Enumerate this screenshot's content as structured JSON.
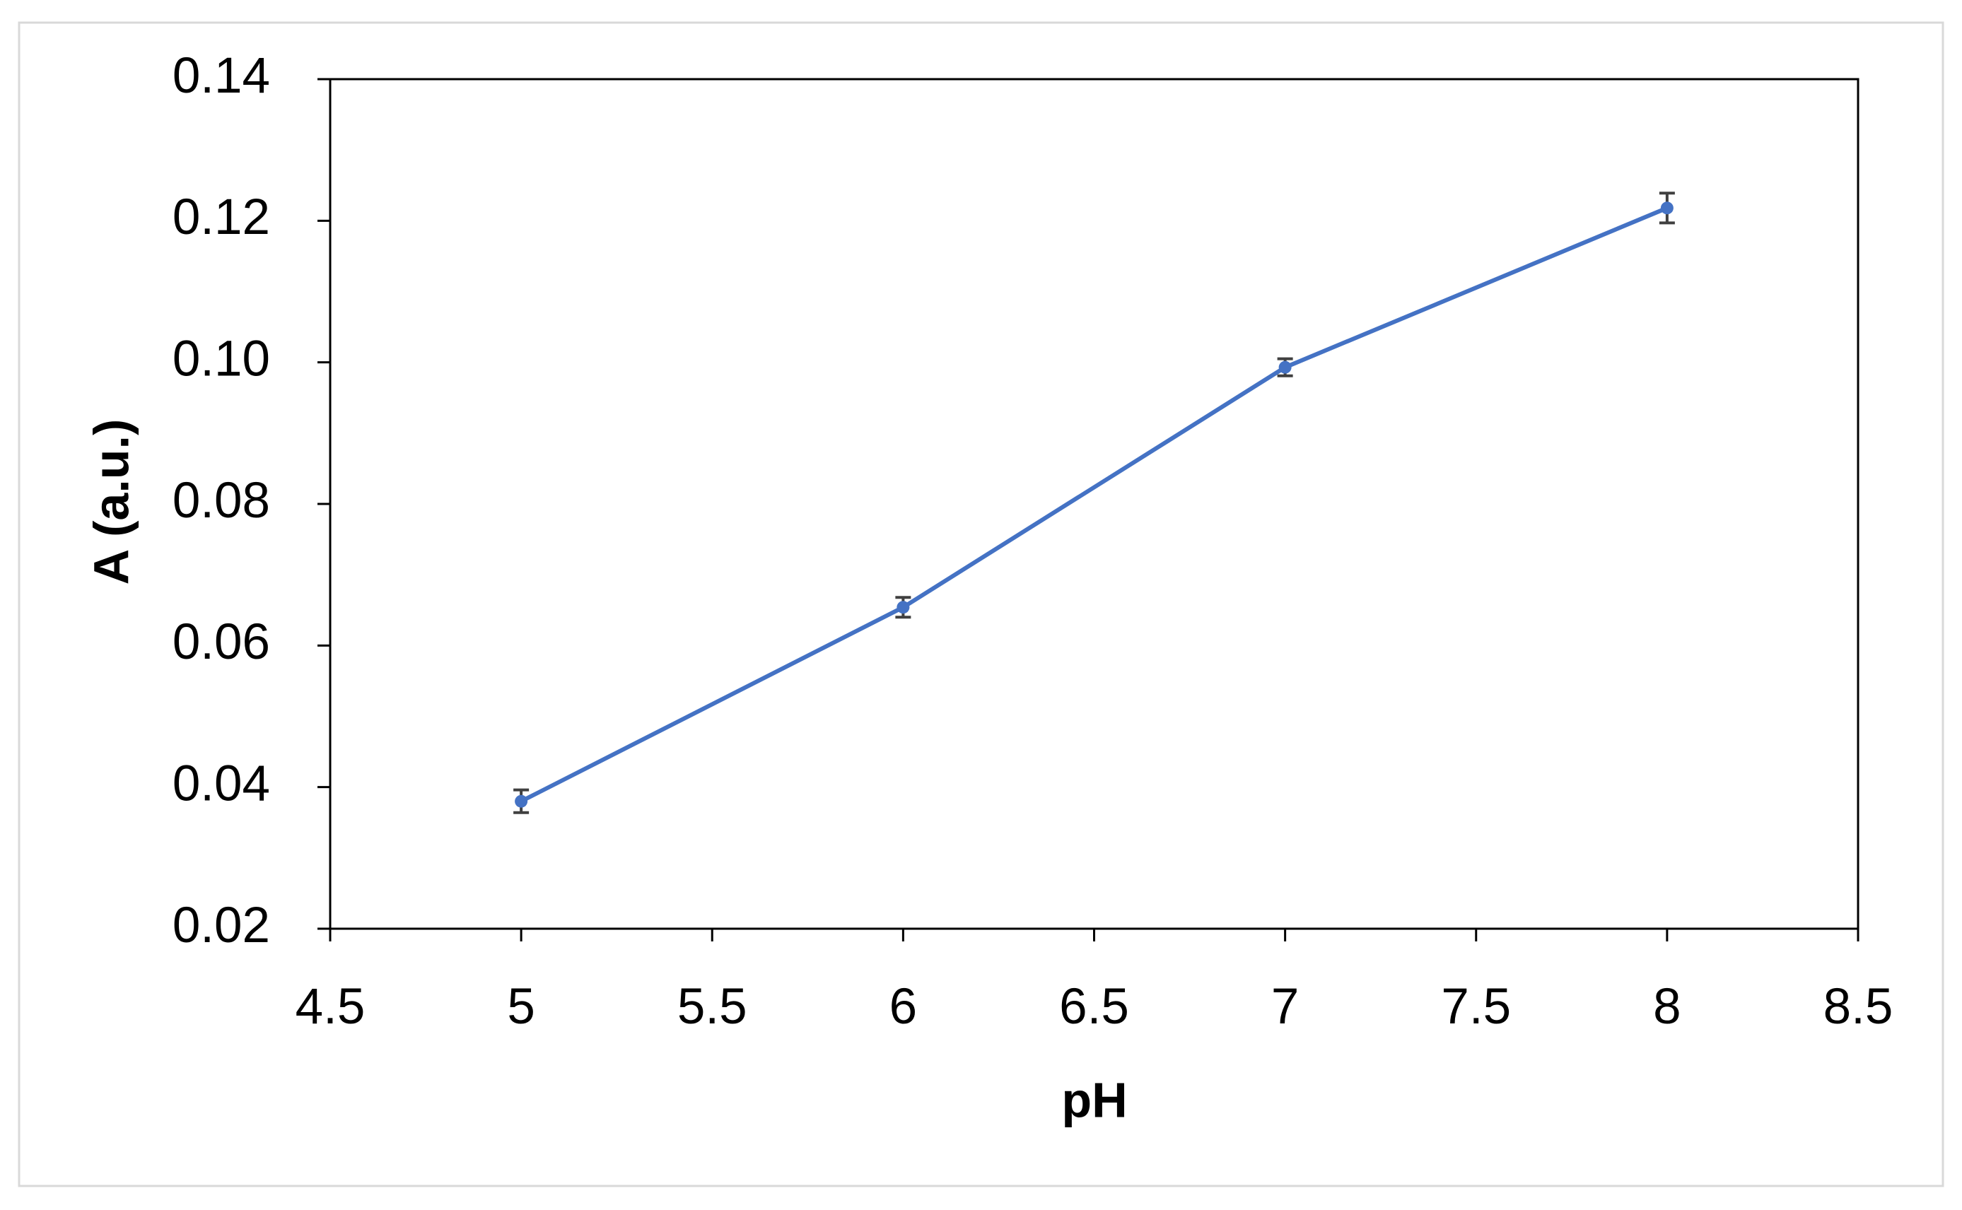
{
  "chart_data": {
    "type": "line",
    "x_label": "pH",
    "y_label": "A (a.u.)",
    "x": [
      5,
      6,
      7,
      8
    ],
    "series": [
      {
        "color": "#4472c4",
        "values": [
          0.038,
          0.0654,
          0.0993,
          0.1218
        ],
        "errors": [
          0.0016,
          0.0014,
          0.0012,
          0.0021
        ]
      }
    ],
    "xlim": [
      4.5,
      8.5
    ],
    "xticks": [
      4.5,
      5,
      5.5,
      6,
      6.5,
      7,
      7.5,
      8,
      8.5
    ],
    "ylim": [
      0.02,
      0.14
    ],
    "yticks": [
      0.02,
      0.04,
      0.06,
      0.08,
      {
        "value": 0.1,
        "label": "0.10"
      },
      0.12,
      0.14
    ],
    "grid": false
  }
}
